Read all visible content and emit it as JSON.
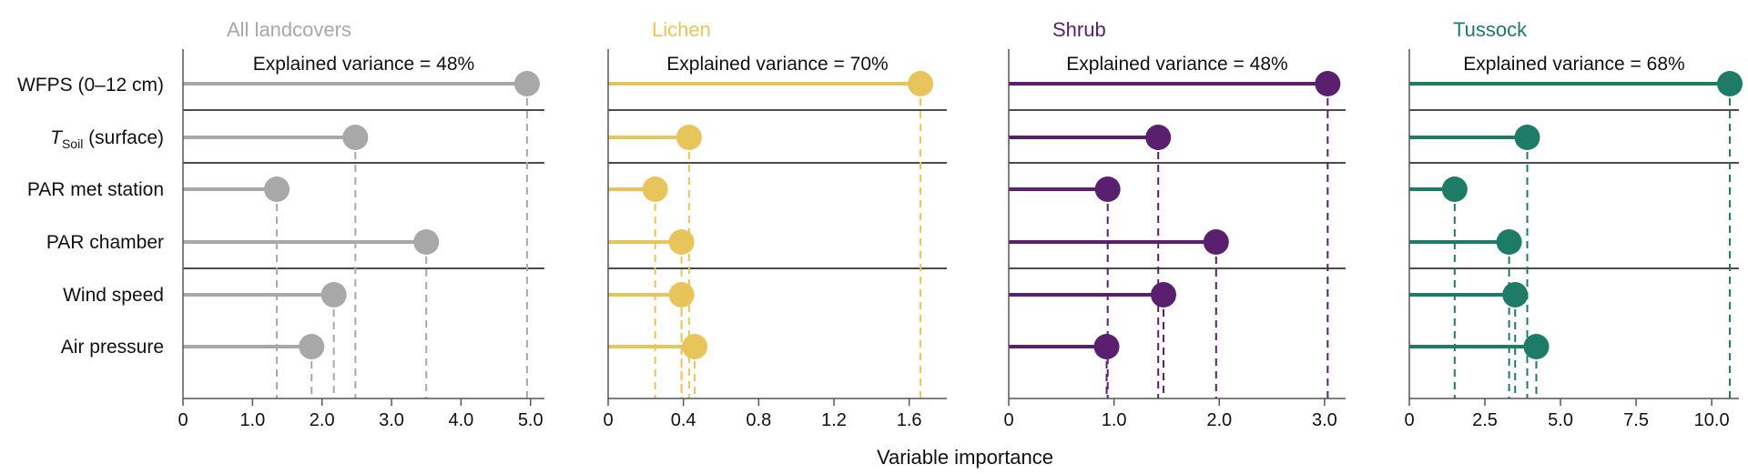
{
  "chart_data": {
    "type": "lollipop",
    "xlabel": "Variable importance",
    "categories": [
      "WFPS (0–12 cm)",
      "T_Soil (surface)",
      "PAR met station",
      "PAR chamber",
      "Wind speed",
      "Air pressure"
    ],
    "category_label_parts": {
      "tsoil_T": "T",
      "tsoil_sub": "Soil",
      "tsoil_rest": " (surface)"
    },
    "panels": [
      {
        "name": "All landcovers",
        "color": "#a8a8a8",
        "subtitle": "Explained variance = 48%",
        "values": [
          4.95,
          2.48,
          1.35,
          3.5,
          2.17,
          1.85
        ],
        "xlim": [
          0,
          5.2
        ],
        "ticks": [
          0,
          1,
          2,
          3,
          4,
          5
        ],
        "tick_labels": [
          "0",
          "1.0",
          "2.0",
          "3.0",
          "4.0",
          "5.0"
        ],
        "separators_after": [
          0,
          1,
          3
        ]
      },
      {
        "name": "Lichen",
        "color": "#e8c55a",
        "subtitle": "Explained variance = 70%",
        "values": [
          1.66,
          0.43,
          0.25,
          0.39,
          0.39,
          0.46
        ],
        "xlim": [
          0,
          1.8
        ],
        "ticks": [
          0,
          0.4,
          0.8,
          1.2,
          1.6
        ],
        "tick_labels": [
          "0",
          "0.4",
          "0.8",
          "1.2",
          "1.6"
        ],
        "separators_after": [
          0,
          1,
          3
        ]
      },
      {
        "name": "Shrub",
        "color": "#5a1f6e",
        "subtitle": "Explained variance = 48%",
        "values": [
          3.03,
          1.42,
          0.94,
          1.97,
          1.47,
          0.93
        ],
        "xlim": [
          0,
          3.2
        ],
        "ticks": [
          0,
          1,
          2,
          3
        ],
        "tick_labels": [
          "0",
          "1.0",
          "2.0",
          "3.0"
        ],
        "separators_after": [
          0,
          1,
          3
        ]
      },
      {
        "name": "Tussock",
        "color": "#1e7b66",
        "subtitle": "Explained variance = 68%",
        "values": [
          10.6,
          3.9,
          1.5,
          3.3,
          3.5,
          4.2
        ],
        "xlim": [
          0,
          10.9
        ],
        "ticks": [
          0,
          2.5,
          5,
          7.5,
          10
        ],
        "tick_labels": [
          "0",
          "2.5",
          "5.0",
          "7.5",
          "10.0"
        ],
        "separators_after": [
          0,
          1,
          3
        ]
      }
    ]
  }
}
